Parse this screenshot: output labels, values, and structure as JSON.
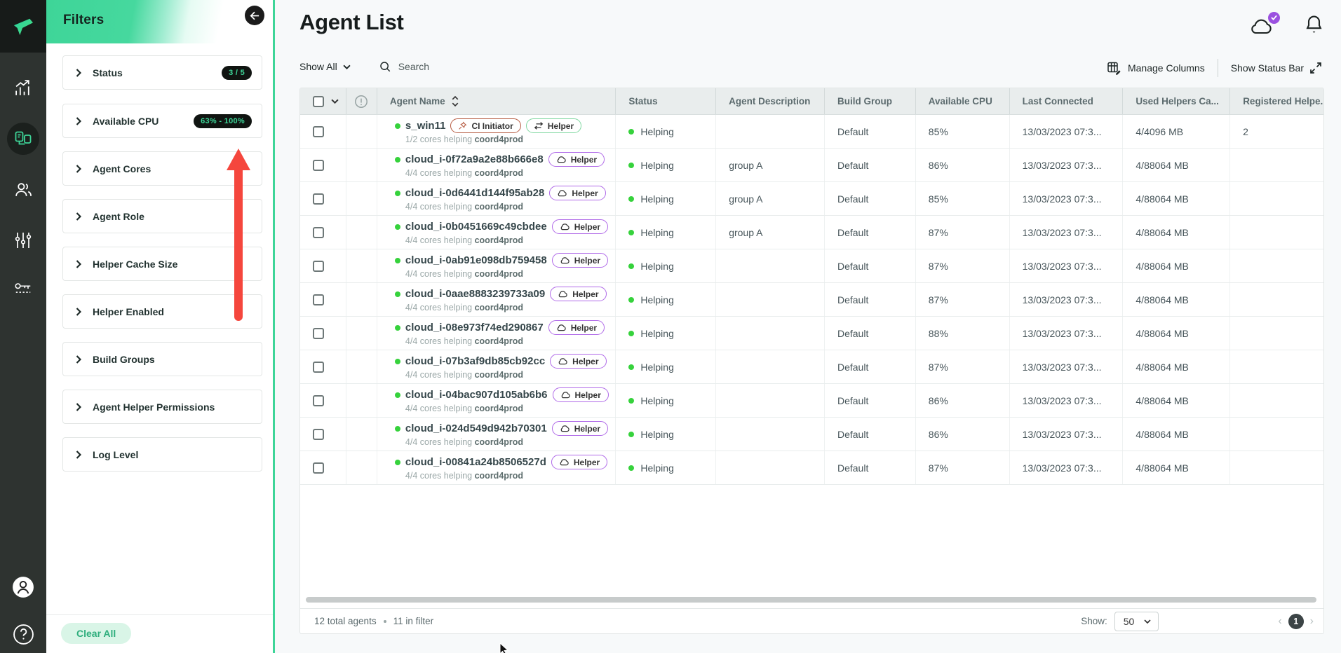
{
  "colors": {
    "accent_green": "#3ed598",
    "badge_pill_bg": "#101411",
    "badge_pill_text": "#3ed598",
    "annotation_arrow_red": "#f5463d",
    "cloud_badge_purple": "#9b51e0",
    "status_dot_green": "#36d23c",
    "ci_badge_border": "#b65b41",
    "helper_badge_green_border": "#7fd7a0",
    "helper_badge_purple_border": "#b06ae8"
  },
  "rail": {
    "items": [
      {
        "name": "analytics"
      },
      {
        "name": "agent-list",
        "active": true
      },
      {
        "name": "users"
      },
      {
        "name": "settings"
      },
      {
        "name": "license-keys"
      }
    ],
    "bottom": [
      {
        "name": "profile"
      },
      {
        "name": "help"
      }
    ]
  },
  "filters": {
    "title": "Filters",
    "items": [
      {
        "label": "Status",
        "badge": "3 / 5"
      },
      {
        "label": "Available CPU",
        "badge": "63% - 100%"
      },
      {
        "label": "Agent Cores"
      },
      {
        "label": "Agent Role"
      },
      {
        "label": "Helper Cache Size"
      },
      {
        "label": "Helper Enabled"
      },
      {
        "label": "Build Groups"
      },
      {
        "label": "Agent Helper Permissions"
      },
      {
        "label": "Log Level"
      }
    ],
    "clear_all_label": "Clear All"
  },
  "header": {
    "title": "Agent List"
  },
  "toolbar": {
    "show_all_label": "Show All",
    "search_placeholder": "Search",
    "manage_columns_label": "Manage Columns",
    "show_status_bar_label": "Show Status Bar"
  },
  "table": {
    "columns": [
      "Agent Name",
      "Status",
      "Agent Description",
      "Build Group",
      "Available CPU",
      "Last Connected",
      "Used Helpers Ca...",
      "Registered Helpe.."
    ],
    "rows": [
      {
        "name": "s_win11",
        "sub": "1/2 cores helping",
        "sub_target": "coord4prod",
        "badges": [
          {
            "type": "ci",
            "label": "CI Initiator"
          },
          {
            "type": "helper-arrows",
            "label": "Helper"
          }
        ],
        "status": "Helping",
        "description": "",
        "build_group": "Default",
        "available_cpu": "85%",
        "last_connected": "13/03/2023 07:3...",
        "used_helpers": "4/4096 MB",
        "registered_helpers": "2"
      },
      {
        "name": "cloud_i-0f72a9a2e88b666e8",
        "sub": "4/4 cores helping",
        "sub_target": "coord4prod",
        "badges": [
          {
            "type": "helper-cloud",
            "label": "Helper"
          }
        ],
        "status": "Helping",
        "description": "group A",
        "build_group": "Default",
        "available_cpu": "86%",
        "last_connected": "13/03/2023 07:3...",
        "used_helpers": "4/88064 MB",
        "registered_helpers": ""
      },
      {
        "name": "cloud_i-0d6441d144f95ab28",
        "sub": "4/4 cores helping",
        "sub_target": "coord4prod",
        "badges": [
          {
            "type": "helper-cloud",
            "label": "Helper"
          }
        ],
        "status": "Helping",
        "description": "group A",
        "build_group": "Default",
        "available_cpu": "85%",
        "last_connected": "13/03/2023 07:3...",
        "used_helpers": "4/88064 MB",
        "registered_helpers": ""
      },
      {
        "name": "cloud_i-0b0451669c49cbdee",
        "sub": "4/4 cores helping",
        "sub_target": "coord4prod",
        "badges": [
          {
            "type": "helper-cloud",
            "label": "Helper"
          }
        ],
        "status": "Helping",
        "description": "group A",
        "build_group": "Default",
        "available_cpu": "87%",
        "last_connected": "13/03/2023 07:3...",
        "used_helpers": "4/88064 MB",
        "registered_helpers": ""
      },
      {
        "name": "cloud_i-0ab91e098db759458",
        "sub": "4/4 cores helping",
        "sub_target": "coord4prod",
        "badges": [
          {
            "type": "helper-cloud",
            "label": "Helper"
          }
        ],
        "status": "Helping",
        "description": "",
        "build_group": "Default",
        "available_cpu": "87%",
        "last_connected": "13/03/2023 07:3...",
        "used_helpers": "4/88064 MB",
        "registered_helpers": ""
      },
      {
        "name": "cloud_i-0aae8883239733a09",
        "sub": "4/4 cores helping",
        "sub_target": "coord4prod",
        "badges": [
          {
            "type": "helper-cloud",
            "label": "Helper"
          }
        ],
        "status": "Helping",
        "description": "",
        "build_group": "Default",
        "available_cpu": "87%",
        "last_connected": "13/03/2023 07:3...",
        "used_helpers": "4/88064 MB",
        "registered_helpers": ""
      },
      {
        "name": "cloud_i-08e973f74ed290867",
        "sub": "4/4 cores helping",
        "sub_target": "coord4prod",
        "badges": [
          {
            "type": "helper-cloud",
            "label": "Helper"
          }
        ],
        "status": "Helping",
        "description": "",
        "build_group": "Default",
        "available_cpu": "88%",
        "last_connected": "13/03/2023 07:3...",
        "used_helpers": "4/88064 MB",
        "registered_helpers": ""
      },
      {
        "name": "cloud_i-07b3af9db85cb92cc",
        "sub": "4/4 cores helping",
        "sub_target": "coord4prod",
        "badges": [
          {
            "type": "helper-cloud",
            "label": "Helper"
          }
        ],
        "status": "Helping",
        "description": "",
        "build_group": "Default",
        "available_cpu": "87%",
        "last_connected": "13/03/2023 07:3...",
        "used_helpers": "4/88064 MB",
        "registered_helpers": ""
      },
      {
        "name": "cloud_i-04bac907d105ab6b6",
        "sub": "4/4 cores helping",
        "sub_target": "coord4prod",
        "badges": [
          {
            "type": "helper-cloud",
            "label": "Helper"
          }
        ],
        "status": "Helping",
        "description": "",
        "build_group": "Default",
        "available_cpu": "86%",
        "last_connected": "13/03/2023 07:3...",
        "used_helpers": "4/88064 MB",
        "registered_helpers": ""
      },
      {
        "name": "cloud_i-024d549d942b70301",
        "sub": "4/4 cores helping",
        "sub_target": "coord4prod",
        "badges": [
          {
            "type": "helper-cloud",
            "label": "Helper"
          }
        ],
        "status": "Helping",
        "description": "",
        "build_group": "Default",
        "available_cpu": "86%",
        "last_connected": "13/03/2023 07:3...",
        "used_helpers": "4/88064 MB",
        "registered_helpers": ""
      },
      {
        "name": "cloud_i-00841a24b8506527d",
        "sub": "4/4 cores helping",
        "sub_target": "coord4prod",
        "badges": [
          {
            "type": "helper-cloud",
            "label": "Helper"
          }
        ],
        "status": "Helping",
        "description": "",
        "build_group": "Default",
        "available_cpu": "87%",
        "last_connected": "13/03/2023 07:3...",
        "used_helpers": "4/88064 MB",
        "registered_helpers": ""
      }
    ]
  },
  "footer": {
    "total": "12 total agents",
    "in_filter": "11 in filter",
    "show_label": "Show:",
    "page_size": "50",
    "page": "1"
  }
}
